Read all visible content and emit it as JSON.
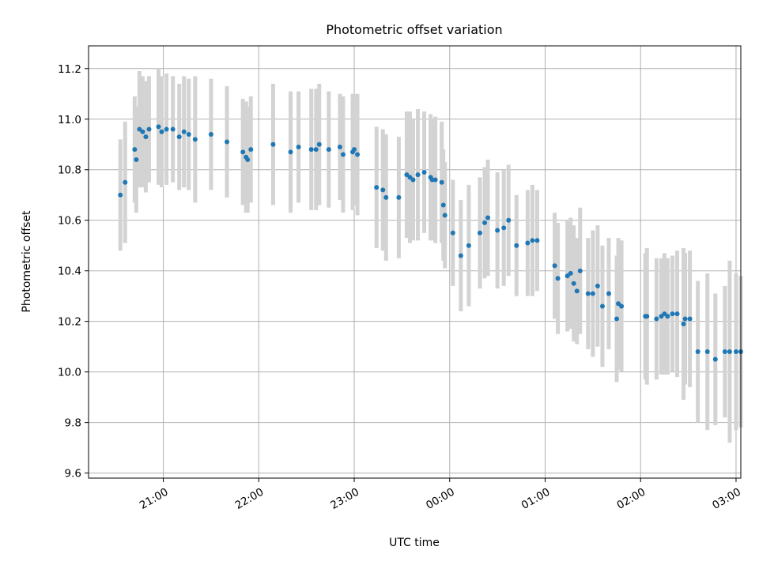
{
  "chart_data": {
    "type": "scatter",
    "title": "Photometric offset variation",
    "xlabel": "UTC time",
    "ylabel": "Photometric offset",
    "grid": true,
    "legend": "none",
    "xlim": [
      "20:13",
      "03:03"
    ],
    "ylim": [
      9.58,
      11.29
    ],
    "xticks": [
      "21:00",
      "22:00",
      "23:00",
      "00:00",
      "01:00",
      "02:00",
      "03:00"
    ],
    "yticks": [
      "9.6",
      "9.8",
      "10.0",
      "10.2",
      "10.4",
      "10.6",
      "10.8",
      "11.0",
      "11.2"
    ],
    "colors": {
      "point": "#1f77b4",
      "errorbar": "#d3d3d3",
      "grid": "#b0b0b0"
    },
    "series": [
      {
        "x": [
          "20:33",
          "20:36",
          "20:42",
          "20:43",
          "20:45",
          "20:47",
          "20:49",
          "20:51",
          "20:57",
          "20:59",
          "21:02",
          "21:06",
          "21:10",
          "21:13",
          "21:16",
          "21:20",
          "21:30",
          "21:40",
          "21:50",
          "21:52",
          "21:53",
          "21:55",
          "22:09",
          "22:20",
          "22:25",
          "22:33",
          "22:36",
          "22:38",
          "22:44",
          "22:51",
          "22:53",
          "22:59",
          "23:00",
          "23:02",
          "23:14",
          "23:18",
          "23:20",
          "23:28",
          "23:33",
          "23:35",
          "23:37",
          "23:40",
          "23:44",
          "23:48",
          "23:49",
          "23:51",
          "23:55",
          "23:56",
          "23:57",
          "00:02",
          "00:07",
          "00:12",
          "00:19",
          "00:22",
          "00:24",
          "00:30",
          "00:34",
          "00:37",
          "00:42",
          "00:49",
          "00:52",
          "00:55",
          "01:06",
          "01:08",
          "01:14",
          "01:16",
          "01:18",
          "01:20",
          "01:22",
          "01:27",
          "01:30",
          "01:33",
          "01:36",
          "01:40",
          "01:45",
          "01:46",
          "01:48",
          "02:03",
          "02:04",
          "02:10",
          "02:13",
          "02:15",
          "02:17",
          "02:20",
          "02:23",
          "02:27",
          "02:28",
          "02:31",
          "02:36",
          "02:42",
          "02:47",
          "02:53",
          "02:56",
          "03:00",
          "03:03"
        ],
        "y": [
          10.7,
          10.75,
          10.88,
          10.84,
          10.96,
          10.95,
          10.93,
          10.96,
          10.97,
          10.95,
          10.96,
          10.96,
          10.93,
          10.95,
          10.94,
          10.92,
          10.94,
          10.91,
          10.87,
          10.85,
          10.84,
          10.88,
          10.9,
          10.87,
          10.89,
          10.88,
          10.88,
          10.9,
          10.88,
          10.89,
          10.86,
          10.87,
          10.88,
          10.86,
          10.73,
          10.72,
          10.69,
          10.69,
          10.78,
          10.77,
          10.76,
          10.78,
          10.79,
          10.77,
          10.76,
          10.76,
          10.75,
          10.66,
          10.62,
          10.55,
          10.46,
          10.5,
          10.55,
          10.59,
          10.61,
          10.56,
          10.57,
          10.6,
          10.5,
          10.51,
          10.52,
          10.52,
          10.42,
          10.37,
          10.38,
          10.39,
          10.35,
          10.32,
          10.4,
          10.31,
          10.31,
          10.34,
          10.26,
          10.31,
          10.21,
          10.27,
          10.26,
          10.22,
          10.22,
          10.21,
          10.22,
          10.23,
          10.22,
          10.23,
          10.23,
          10.19,
          10.21,
          10.21,
          10.08,
          10.08,
          10.05,
          10.08,
          10.08,
          10.08,
          10.08
        ],
        "yerr": [
          0.22,
          0.24,
          0.21,
          0.21,
          0.23,
          0.22,
          0.22,
          0.21,
          0.23,
          0.22,
          0.22,
          0.21,
          0.21,
          0.22,
          0.22,
          0.25,
          0.22,
          0.22,
          0.21,
          0.22,
          0.21,
          0.21,
          0.24,
          0.24,
          0.22,
          0.24,
          0.24,
          0.24,
          0.23,
          0.21,
          0.23,
          0.23,
          0.22,
          0.24,
          0.24,
          0.24,
          0.25,
          0.24,
          0.25,
          0.26,
          0.24,
          0.26,
          0.24,
          0.25,
          0.24,
          0.25,
          0.24,
          0.22,
          0.21,
          0.21,
          0.22,
          0.24,
          0.22,
          0.22,
          0.23,
          0.23,
          0.23,
          0.22,
          0.2,
          0.21,
          0.22,
          0.2,
          0.21,
          0.22,
          0.22,
          0.22,
          0.23,
          0.21,
          0.25,
          0.22,
          0.25,
          0.24,
          0.24,
          0.22,
          0.25,
          0.26,
          0.26,
          0.25,
          0.27,
          0.24,
          0.23,
          0.24,
          0.23,
          0.23,
          0.25,
          0.3,
          0.26,
          0.27,
          0.28,
          0.31,
          0.26,
          0.26,
          0.36,
          0.31,
          0.3
        ]
      }
    ]
  }
}
